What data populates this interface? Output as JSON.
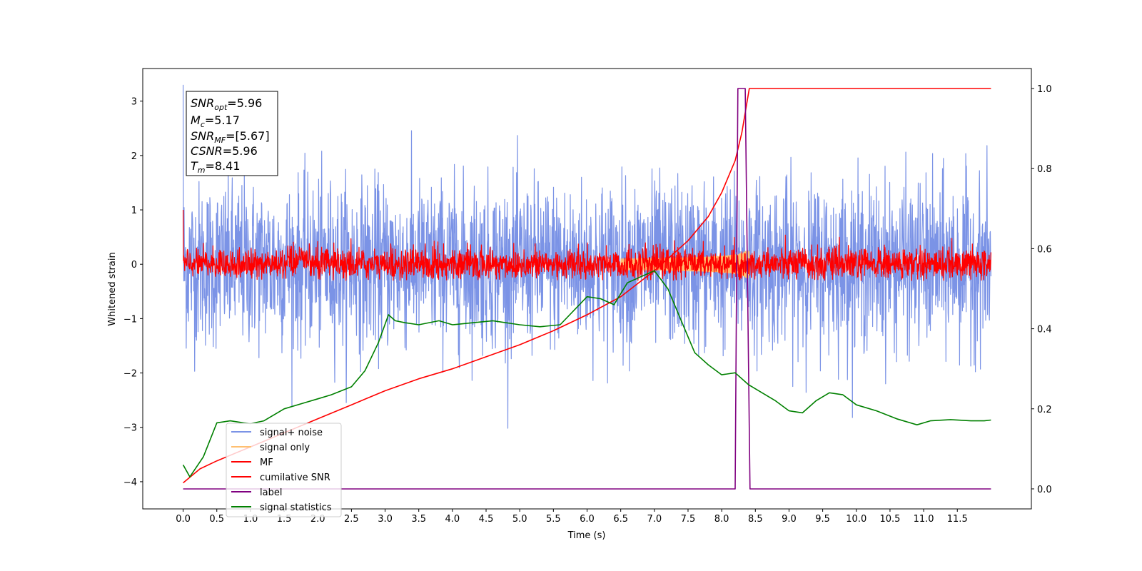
{
  "chart_data": {
    "type": "line",
    "xlabel": "Time (s)",
    "ylabel": "Whitened strain",
    "xlim": [
      -0.6,
      12.6
    ],
    "ylim": [
      -4.5,
      3.6
    ],
    "y2lim": [
      -0.05,
      1.05
    ],
    "x_ticks": [
      "0.0",
      "0.5",
      "1.0",
      "1.5",
      "2.0",
      "2.5",
      "3.0",
      "3.5",
      "4.0",
      "4.5",
      "5.0",
      "5.5",
      "6.0",
      "6.5",
      "7.0",
      "7.5",
      "8.0",
      "8.5",
      "9.0",
      "9.5",
      "10.0",
      "10.5",
      "11.0",
      "11.5"
    ],
    "y_ticks": [
      "3",
      "2",
      "1",
      "0",
      "−1",
      "−2",
      "−3",
      "−4"
    ],
    "y2_ticks": [
      "1.0",
      "0.8",
      "0.6",
      "0.4",
      "0.2",
      "0.0"
    ],
    "legend_position": "lower-left",
    "grid": false,
    "annotation": [
      {
        "label": "SNR",
        "sub": "opt",
        "value": "=5.96"
      },
      {
        "label": "M",
        "sub": "c",
        "value": "=5.17"
      },
      {
        "label": "SNR",
        "sub": "MF",
        "value": "=[5.67]"
      },
      {
        "label": "CSNR",
        "sub": "",
        "value": "=5.96"
      },
      {
        "label": "T",
        "sub": "m",
        "value": "=8.41"
      }
    ],
    "series": [
      {
        "name": "signal+ noise",
        "color": "#7b93e6",
        "axis": "left",
        "kind": "noise",
        "x_range": [
          0,
          12
        ],
        "amplitude_std": 0.75,
        "y_range": [
          -4.2,
          3.3
        ]
      },
      {
        "name": "signal only",
        "color": "#ffbf70",
        "axis": "left",
        "kind": "chirp",
        "merger_time": 8.41,
        "peak_amplitude": 0.25
      },
      {
        "name": "MF",
        "color": "#ff0000",
        "axis": "left",
        "kind": "noise",
        "x_range": [
          0,
          12
        ],
        "amplitude_std": 0.15,
        "y_range": [
          -0.3,
          1.0
        ]
      },
      {
        "name": "cumilative SNR",
        "color": "#ff0000",
        "axis": "right",
        "x": [
          0,
          0.25,
          0.5,
          1.0,
          1.5,
          2.0,
          2.5,
          3.0,
          3.5,
          4.0,
          4.5,
          5.0,
          5.5,
          6.0,
          6.5,
          7.0,
          7.5,
          7.8,
          8.0,
          8.2,
          8.3,
          8.41,
          12.0
        ],
        "y": [
          0.015,
          0.05,
          0.07,
          0.105,
          0.14,
          0.175,
          0.21,
          0.245,
          0.275,
          0.3,
          0.33,
          0.36,
          0.395,
          0.435,
          0.48,
          0.545,
          0.62,
          0.68,
          0.74,
          0.82,
          0.89,
          1.0,
          1.0
        ]
      },
      {
        "name": "label",
        "color": "#800080",
        "axis": "right",
        "x": [
          0,
          8.2,
          8.24,
          8.35,
          8.42,
          12.0
        ],
        "y": [
          0,
          0,
          1.0,
          1.0,
          0,
          0
        ]
      },
      {
        "name": "signal statistics",
        "color": "#008000",
        "axis": "right",
        "x": [
          0,
          0.1,
          0.3,
          0.5,
          0.7,
          0.9,
          1.0,
          1.2,
          1.5,
          1.8,
          2.0,
          2.2,
          2.5,
          2.7,
          2.9,
          3.05,
          3.15,
          3.3,
          3.5,
          3.8,
          4.0,
          4.3,
          4.6,
          5.0,
          5.3,
          5.6,
          6.0,
          6.2,
          6.4,
          6.6,
          6.8,
          7.0,
          7.2,
          7.4,
          7.6,
          7.8,
          8.0,
          8.2,
          8.4,
          8.6,
          8.8,
          9.0,
          9.2,
          9.4,
          9.6,
          9.8,
          10.0,
          10.3,
          10.6,
          10.9,
          11.1,
          11.4,
          11.7,
          11.9,
          12.0
        ],
        "y": [
          0.06,
          0.03,
          0.08,
          0.165,
          0.17,
          0.165,
          0.163,
          0.17,
          0.2,
          0.215,
          0.225,
          0.235,
          0.255,
          0.295,
          0.365,
          0.435,
          0.42,
          0.415,
          0.41,
          0.42,
          0.41,
          0.415,
          0.42,
          0.41,
          0.405,
          0.41,
          0.48,
          0.475,
          0.46,
          0.515,
          0.53,
          0.545,
          0.5,
          0.42,
          0.34,
          0.31,
          0.285,
          0.29,
          0.26,
          0.24,
          0.22,
          0.195,
          0.19,
          0.22,
          0.24,
          0.235,
          0.21,
          0.195,
          0.175,
          0.16,
          0.17,
          0.173,
          0.17,
          0.17,
          0.172
        ]
      }
    ]
  }
}
